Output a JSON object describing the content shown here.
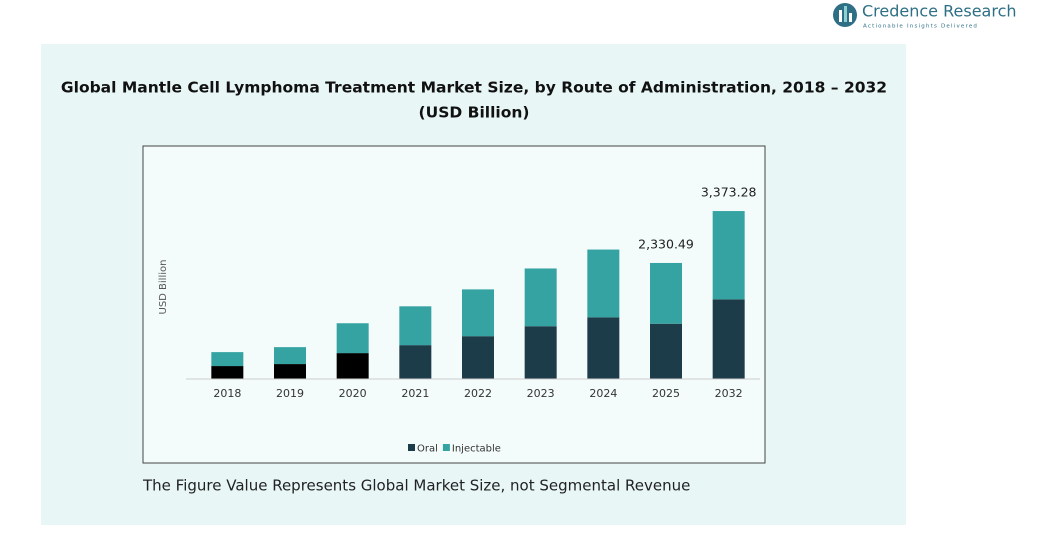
{
  "brand": {
    "name": "Credence Research",
    "tagline": "Actionable Insights Delivered"
  },
  "chart_data": {
    "type": "stacked_bar",
    "title": "Global Mantle Cell Lymphoma Treatment Market Size, by Route of Administration, 2018 – 2032",
    "subtitle": "(USD Billion)",
    "y_label": "USD Billion",
    "categories": [
      "2018",
      "2019",
      "2020",
      "2021",
      "2022",
      "2023",
      "2024",
      "2025",
      "2032"
    ],
    "series": [
      {
        "name": "Oral",
        "color": "#1b3c48",
        "colors": [
          "#000000",
          "#000000",
          "#000000",
          "#1b3c48",
          "#1b3c48",
          "#1b3c48",
          "#1b3c48",
          "#1b3c48",
          "#1b3c48"
        ],
        "values": [
          260,
          300,
          520,
          680,
          860,
          1060,
          1240,
          1110,
          1600
        ]
      },
      {
        "name": "Injectable",
        "color": "#36a3a3",
        "values": [
          280,
          340,
          600,
          780,
          940,
          1160,
          1360,
          1220.49,
          1773.28
        ]
      }
    ],
    "annotations": [
      {
        "category": 7,
        "text": "2,330.49"
      },
      {
        "category": 8,
        "text": "3,373.28"
      }
    ],
    "ylim": [
      0,
      4680
    ],
    "legend": "bottom",
    "footnote": "The Figure Value Represents Global Market Size, not Segmental Revenue"
  }
}
